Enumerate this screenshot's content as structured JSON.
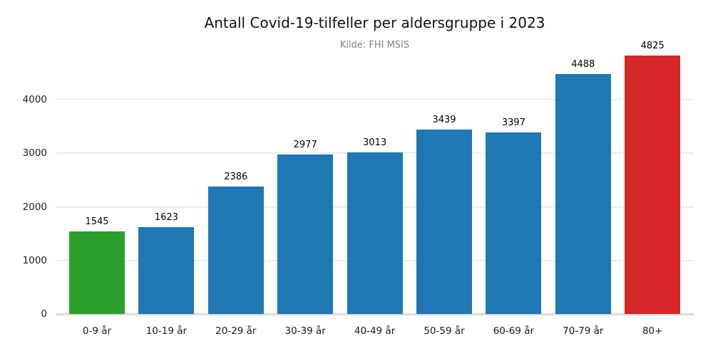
{
  "chart_data": {
    "type": "bar",
    "title": "Antall Covid-19-tilfeller per aldersgruppe i 2023",
    "subtitle": "Kilde: FHI MSIS",
    "xlabel": "",
    "ylabel": "",
    "categories": [
      "0-9 år",
      "10-19 år",
      "20-29 år",
      "30-39 år",
      "40-49 år",
      "50-59 år",
      "60-69 år",
      "70-79 år",
      "80+"
    ],
    "values": [
      1545,
      1623,
      2386,
      2977,
      3013,
      3439,
      3397,
      4488,
      4825
    ],
    "bar_colors": [
      "#2ca02c",
      "#1f77b4",
      "#1f77b4",
      "#1f77b4",
      "#1f77b4",
      "#1f77b4",
      "#1f77b4",
      "#1f77b4",
      "#d62728"
    ],
    "value_labels": [
      "1545",
      "1623",
      "2386",
      "2977",
      "3013",
      "3439",
      "3397",
      "4488",
      "4825"
    ],
    "yticks": [
      0,
      1000,
      2000,
      3000,
      4000
    ],
    "ylim": [
      0,
      5000
    ],
    "grid": "horizontal",
    "legend": "none",
    "colors": {
      "grid": "#ebebeb",
      "baseline": "#dcdcdc",
      "title": "#111111",
      "subtitle": "#7f7f7f",
      "bar_default": "#1f77b4",
      "highlight_first": "#2ca02c",
      "highlight_last": "#d62728"
    }
  }
}
